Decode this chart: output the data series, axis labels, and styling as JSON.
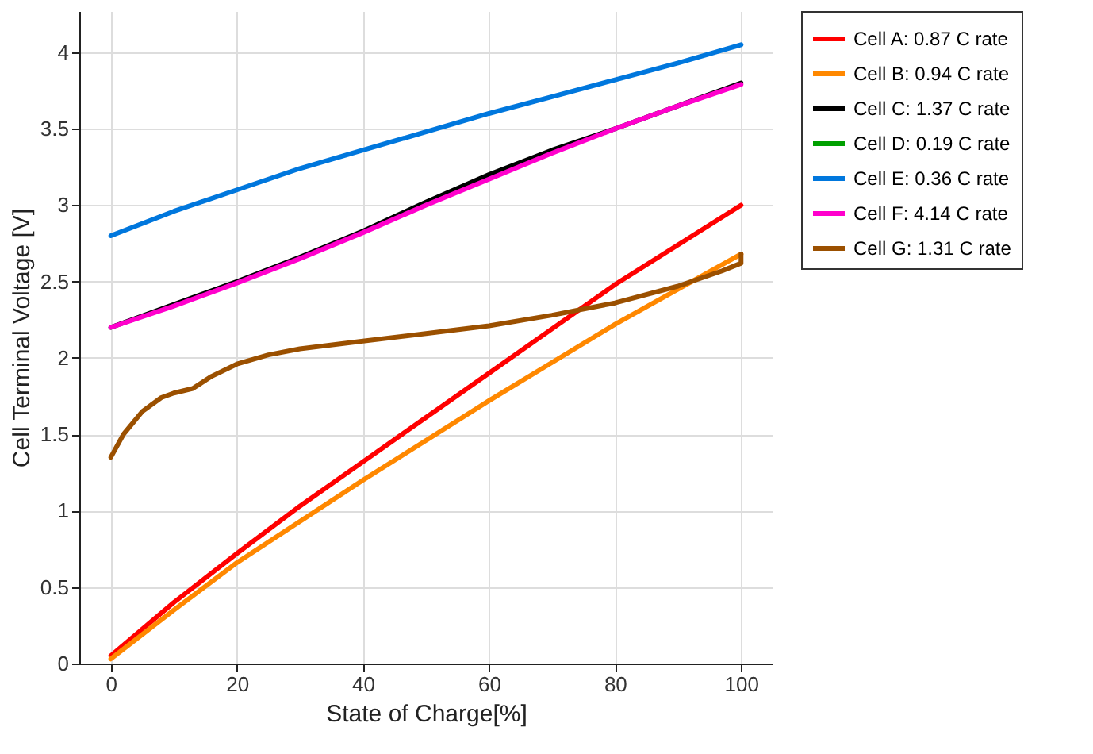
{
  "chart_data": {
    "type": "line",
    "xlabel": "State of Charge[%]",
    "ylabel": "Cell Terminal Voltage [V]",
    "xlim": [
      -5,
      105
    ],
    "ylim": [
      0,
      4.27
    ],
    "xticks": [
      0,
      20,
      40,
      60,
      80,
      100
    ],
    "yticks": [
      0,
      0.5,
      1,
      1.5,
      2,
      2.5,
      3,
      3.5,
      4
    ],
    "grid": true,
    "legend": "right",
    "line_style": "solid",
    "x": [
      0,
      10,
      20,
      30,
      40,
      50,
      60,
      70,
      80,
      90,
      100
    ],
    "series": [
      {
        "name": "Cell A: 0.87 C rate",
        "color": "#ff0000",
        "values": [
          0.05,
          0.4,
          0.72,
          1.03,
          1.32,
          1.61,
          1.9,
          2.19,
          2.48,
          2.74,
          3.0
        ]
      },
      {
        "name": "Cell B: 0.94 C rate",
        "color": "#ff8800",
        "values": [
          0.03,
          0.35,
          0.66,
          0.93,
          1.2,
          1.46,
          1.72,
          1.97,
          2.22,
          2.45,
          2.68
        ]
      },
      {
        "name": "Cell C: 1.37 C rate",
        "color": "#000000",
        "values": [
          2.2,
          2.35,
          2.5,
          2.66,
          2.83,
          3.02,
          3.2,
          3.36,
          3.5,
          3.65,
          3.8
        ]
      },
      {
        "name": "Cell D: 0.19 C rate",
        "color": "#00a000",
        "values": [
          null,
          null,
          null,
          null,
          null,
          null,
          null,
          null,
          null,
          null,
          null
        ]
      },
      {
        "name": "Cell E: 0.36 C rate",
        "color": "#0077dd",
        "values": [
          2.8,
          2.96,
          3.1,
          3.24,
          3.36,
          3.48,
          3.6,
          3.71,
          3.82,
          3.93,
          4.05
        ]
      },
      {
        "name": "Cell F: 4.14 C rate",
        "color": "#ff00cc",
        "values": [
          2.2,
          2.34,
          2.49,
          2.65,
          2.82,
          3.0,
          3.17,
          3.34,
          3.5,
          3.65,
          3.79
        ]
      },
      {
        "name": "Cell G: 1.31 C rate",
        "color": "#9b5000",
        "x": [
          0,
          2,
          5,
          8,
          10,
          13,
          16,
          20,
          25,
          30,
          40,
          50,
          60,
          70,
          80,
          90,
          97,
          100,
          100
        ],
        "values": [
          1.35,
          1.5,
          1.65,
          1.74,
          1.77,
          1.8,
          1.88,
          1.96,
          2.02,
          2.06,
          2.11,
          2.16,
          2.21,
          2.28,
          2.36,
          2.47,
          2.57,
          2.62,
          2.68
        ]
      }
    ]
  }
}
